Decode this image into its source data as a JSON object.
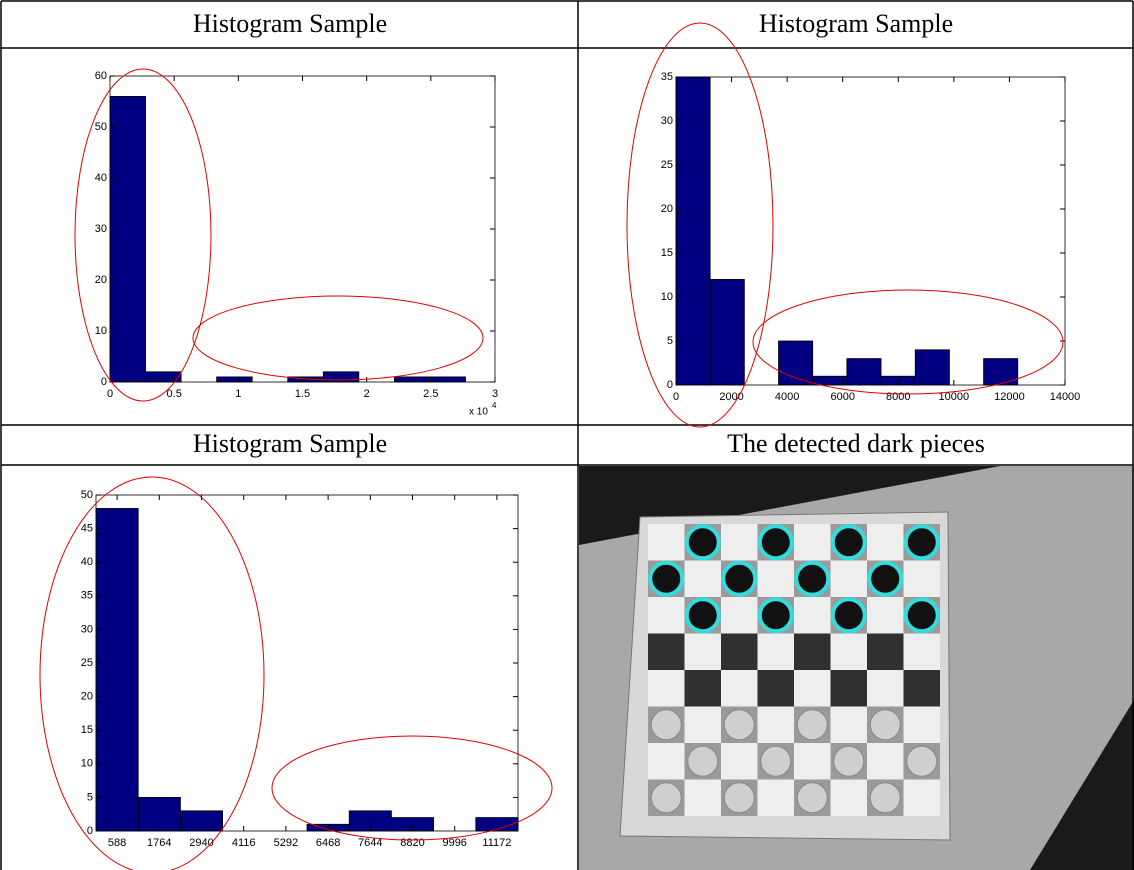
{
  "chart_data": [
    {
      "type": "histogram",
      "title": "Histogram Sample",
      "bins": [
        0,
        0.277,
        0.554,
        0.831,
        1.108,
        1.385,
        1.662,
        1.939,
        2.216,
        2.493,
        2.77
      ],
      "values": [
        56,
        2,
        0,
        1,
        0,
        1,
        2,
        0,
        1,
        1
      ],
      "color": "#000080",
      "xlim": [
        0,
        3
      ],
      "xticks": [
        0,
        0.5,
        1,
        1.5,
        2,
        2.5,
        3
      ],
      "ylim": [
        0,
        60
      ],
      "yticks": [
        0,
        10,
        20,
        30,
        40,
        50,
        60
      ],
      "x_multiplier": {
        "base": "x 10",
        "exponent": "4"
      }
    },
    {
      "type": "histogram",
      "title": "Histogram Sample",
      "bins": [
        0,
        1230,
        2460,
        3690,
        4920,
        6150,
        7380,
        8610,
        9840,
        11070,
        12300
      ],
      "values": [
        35,
        12,
        0,
        5,
        1,
        3,
        1,
        4,
        0,
        3
      ],
      "color": "#000080",
      "xlim": [
        0,
        14000
      ],
      "xticks": [
        0,
        2000,
        4000,
        6000,
        8000,
        10000,
        12000,
        14000
      ],
      "ylim": [
        0,
        35
      ],
      "yticks": [
        0,
        5,
        10,
        15,
        20,
        25,
        30,
        35
      ]
    },
    {
      "type": "histogram",
      "title": "Histogram Sample",
      "bins": [
        0,
        1176,
        2352,
        3528,
        4704,
        5880,
        7056,
        8232,
        9408,
        10584,
        11760
      ],
      "values": [
        48,
        5,
        3,
        0,
        0,
        1,
        3,
        2,
        0,
        2
      ],
      "color": "#000080",
      "xlim": [
        0,
        11760
      ],
      "xticks": [
        588,
        1764,
        2940,
        4116,
        5292,
        6468,
        7644,
        8820,
        9996,
        11172
      ],
      "ylim": [
        0,
        50
      ],
      "yticks": [
        0,
        5,
        10,
        15,
        20,
        25,
        30,
        35,
        40,
        45,
        50
      ]
    }
  ],
  "image": {
    "caption": "The detected dark pieces"
  }
}
